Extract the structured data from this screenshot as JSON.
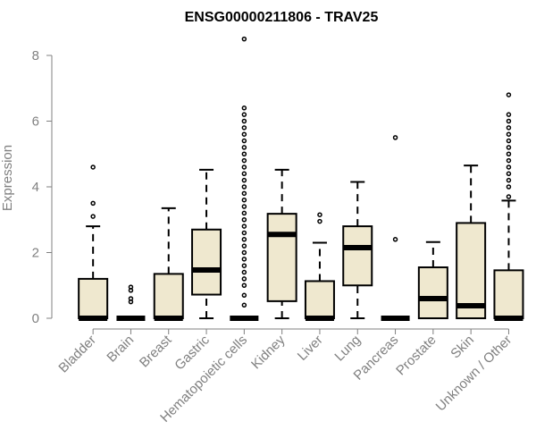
{
  "chart_data": {
    "type": "boxplot",
    "title": "ENSG00000211806 - TRAV25",
    "xlabel": "",
    "ylabel": "Expression",
    "ylim": [
      0,
      8.5
    ],
    "yticks": [
      0,
      2,
      4,
      6,
      8
    ],
    "grid": false,
    "box_fill": "#efe8cf",
    "box_stroke": "#000000",
    "axis_color": "#808080",
    "categories": [
      "Bladder",
      "Brain",
      "Breast",
      "Gastric",
      "Hematopoietic cells",
      "Kidney",
      "Liver",
      "Lung",
      "Pancreas",
      "Prostate",
      "Skin",
      "Unknown / Other"
    ],
    "boxes": [
      {
        "category": "Bladder",
        "whisker_low": 0,
        "q1": 0,
        "median": 0,
        "q3": 1.2,
        "whisker_high": 2.8,
        "outliers": [
          3.1,
          3.5,
          4.6
        ]
      },
      {
        "category": "Brain",
        "whisker_low": 0,
        "q1": 0,
        "median": 0,
        "q3": 0,
        "whisker_high": 0,
        "outliers": [
          0.5,
          0.6,
          0.85,
          0.95
        ]
      },
      {
        "category": "Breast",
        "whisker_low": 0,
        "q1": 0,
        "median": 0,
        "q3": 1.35,
        "whisker_high": 3.35,
        "outliers": []
      },
      {
        "category": "Gastric",
        "whisker_low": 0,
        "q1": 0.72,
        "median": 1.47,
        "q3": 2.7,
        "whisker_high": 4.52,
        "outliers": []
      },
      {
        "category": "Hematopoietic cells",
        "whisker_low": 0,
        "q1": 0,
        "median": 0,
        "q3": 0,
        "whisker_high": 0,
        "outliers": [
          0.4,
          0.7,
          1.0,
          1.2,
          1.4,
          1.6,
          1.8,
          2.0,
          2.2,
          2.4,
          2.6,
          2.8,
          3.0,
          3.2,
          3.4,
          3.6,
          3.8,
          4.0,
          4.2,
          4.4,
          4.6,
          4.8,
          5.0,
          5.2,
          5.4,
          5.6,
          5.8,
          6.0,
          6.2,
          6.4,
          8.5
        ]
      },
      {
        "category": "Kidney",
        "whisker_low": 0,
        "q1": 0.52,
        "median": 2.55,
        "q3": 3.18,
        "whisker_high": 4.52,
        "outliers": []
      },
      {
        "category": "Liver",
        "whisker_low": 0,
        "q1": 0,
        "median": 0,
        "q3": 1.13,
        "whisker_high": 2.3,
        "outliers": [
          2.95,
          3.15
        ]
      },
      {
        "category": "Lung",
        "whisker_low": 0,
        "q1": 1.0,
        "median": 2.15,
        "q3": 2.8,
        "whisker_high": 4.15,
        "outliers": []
      },
      {
        "category": "Pancreas",
        "whisker_low": 0,
        "q1": 0,
        "median": 0,
        "q3": 0,
        "whisker_high": 0,
        "outliers": [
          2.4,
          5.5
        ]
      },
      {
        "category": "Prostate",
        "whisker_low": 0,
        "q1": 0,
        "median": 0.6,
        "q3": 1.55,
        "whisker_high": 2.32,
        "outliers": []
      },
      {
        "category": "Skin",
        "whisker_low": 0,
        "q1": 0,
        "median": 0.38,
        "q3": 2.9,
        "whisker_high": 4.65,
        "outliers": []
      },
      {
        "category": "Unknown / Other",
        "whisker_low": 0,
        "q1": 0,
        "median": 0,
        "q3": 1.46,
        "whisker_high": 3.58,
        "outliers": [
          3.7,
          4.0,
          4.2,
          4.4,
          4.6,
          4.8,
          5.0,
          5.2,
          5.4,
          5.6,
          5.8,
          6.0,
          6.2,
          6.8
        ]
      }
    ]
  }
}
